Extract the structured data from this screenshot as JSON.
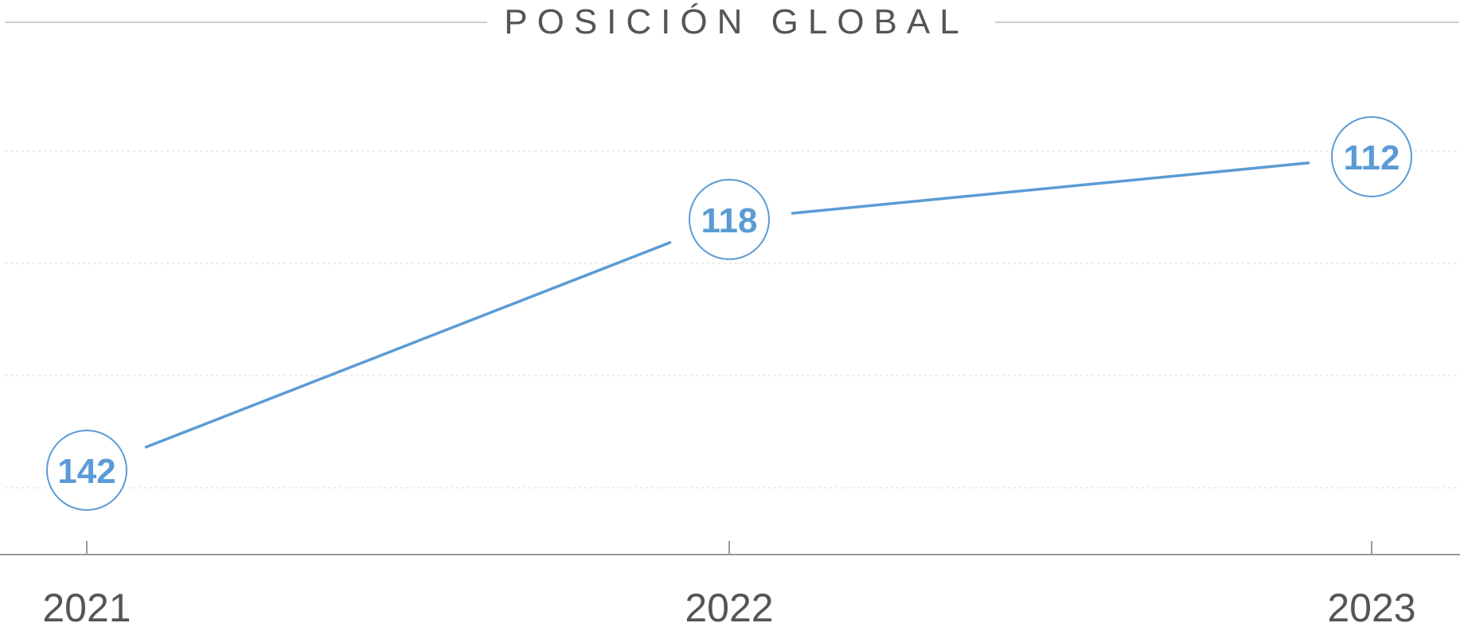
{
  "chart_data": {
    "type": "line",
    "title": "POSICIÓN GLOBAL",
    "xlabel": "",
    "ylabel": "",
    "categories": [
      "2021",
      "2022",
      "2023"
    ],
    "series": [
      {
        "values": [
          142,
          118,
          112
        ]
      }
    ],
    "y_axis": "inverted (lower position value plotted higher)",
    "ylim": [
      100,
      150
    ],
    "grid": "horizontal dotted",
    "legend": "none",
    "data_labels": "circled values",
    "colors": {
      "line": "#5B9BD5",
      "text": "#555555",
      "axis": "#9A9A9A",
      "title_rule": "#CFCFCF",
      "grid": "#E6E6E6"
    }
  }
}
